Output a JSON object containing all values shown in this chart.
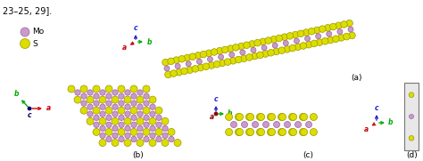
{
  "background_color": "#ffffff",
  "title_text": "23–25, 29].",
  "mo_color": "#cc99cc",
  "mo_edge_color": "#996699",
  "s_color": "#dddd00",
  "s_edge_color": "#999900",
  "axis_colors": {
    "a": "#cc0000",
    "b": "#00aa00",
    "c": "#2222cc"
  },
  "panel_labels": {
    "a": "(a)",
    "b": "(b)",
    "c": "(c)",
    "d": "(d)"
  },
  "rect_face": "#e8e8e8",
  "rect_edge": "#888888",
  "c_dot_color": "#000066",
  "a_dot_color": "#880000"
}
